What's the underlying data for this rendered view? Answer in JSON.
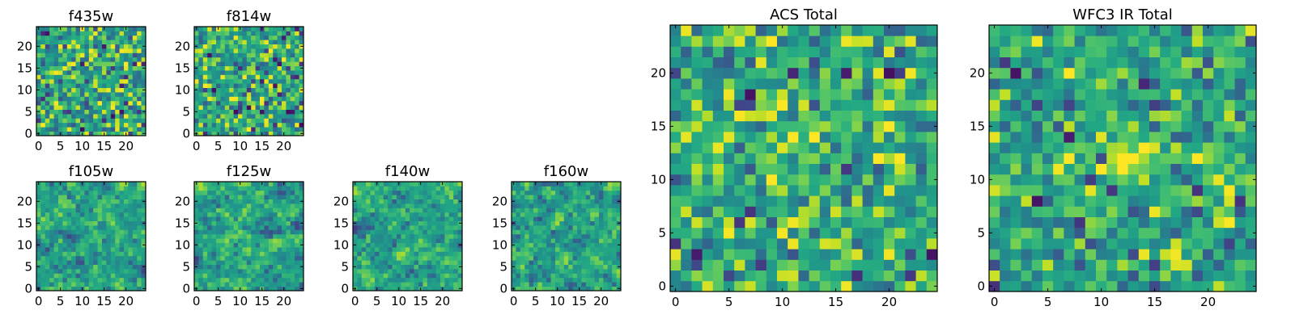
{
  "colors": {
    "colormap": [
      "#440154",
      "#3b528b",
      "#21908d",
      "#5dc963",
      "#fde725"
    ],
    "axes_frame": "#000000",
    "background": "#ffffff"
  },
  "chart_data": [
    {
      "type": "heatmap",
      "id": "f435w",
      "title": "f435w",
      "colormap": "viridis",
      "shape": [
        25,
        25
      ],
      "xlim": [
        -0.5,
        24.5
      ],
      "ylim": [
        -0.5,
        24.5
      ],
      "origin": "lower",
      "xticks": [
        0,
        5,
        10,
        15,
        20
      ],
      "yticks": [
        0,
        5,
        10,
        15,
        20
      ],
      "xtick_labels": [
        "0",
        "5",
        "10",
        "15",
        "20"
      ],
      "ytick_labels": [
        "0",
        "5",
        "10",
        "15",
        "20"
      ],
      "grid": false,
      "pixel_values": "noise-like field, mostly mid-range (green) with scattered dark blue and yellow pixels"
    },
    {
      "type": "heatmap",
      "id": "f814w",
      "title": "f814w",
      "colormap": "viridis",
      "shape": [
        25,
        25
      ],
      "xlim": [
        -0.5,
        24.5
      ],
      "ylim": [
        -0.5,
        24.5
      ],
      "origin": "lower",
      "xticks": [
        0,
        5,
        10,
        15,
        20
      ],
      "yticks": [
        0,
        5,
        10,
        15,
        20
      ],
      "xtick_labels": [
        "0",
        "5",
        "10",
        "15",
        "20"
      ],
      "ytick_labels": [
        "0",
        "5",
        "10",
        "15",
        "20"
      ],
      "grid": false
    },
    {
      "type": "heatmap",
      "id": "f105w",
      "title": "f105w",
      "colormap": "viridis",
      "shape": [
        25,
        25
      ],
      "xlim": [
        -0.5,
        24.5
      ],
      "ylim": [
        -0.5,
        24.5
      ],
      "origin": "lower",
      "xticks": [
        0,
        5,
        10,
        15,
        20
      ],
      "yticks": [
        0,
        5,
        10,
        15,
        20
      ],
      "xtick_labels": [
        "0",
        "5",
        "10",
        "15",
        "20"
      ],
      "ytick_labels": [
        "0",
        "5",
        "10",
        "15",
        "20"
      ],
      "grid": false
    },
    {
      "type": "heatmap",
      "id": "f125w",
      "title": "f125w",
      "colormap": "viridis",
      "shape": [
        25,
        25
      ],
      "xlim": [
        -0.5,
        24.5
      ],
      "ylim": [
        -0.5,
        24.5
      ],
      "origin": "lower",
      "xticks": [
        0,
        5,
        10,
        15,
        20
      ],
      "yticks": [
        0,
        5,
        10,
        15,
        20
      ],
      "xtick_labels": [
        "0",
        "5",
        "10",
        "15",
        "20"
      ],
      "ytick_labels": [
        "0",
        "5",
        "10",
        "15",
        "20"
      ],
      "grid": false
    },
    {
      "type": "heatmap",
      "id": "f140w",
      "title": "f140w",
      "colormap": "viridis",
      "shape": [
        25,
        25
      ],
      "xlim": [
        -0.5,
        24.5
      ],
      "ylim": [
        -0.5,
        24.5
      ],
      "origin": "lower",
      "xticks": [
        0,
        5,
        10,
        15,
        20
      ],
      "yticks": [
        0,
        5,
        10,
        15,
        20
      ],
      "xtick_labels": [
        "0",
        "5",
        "10",
        "15",
        "20"
      ],
      "ytick_labels": [
        "0",
        "5",
        "10",
        "15",
        "20"
      ],
      "grid": false
    },
    {
      "type": "heatmap",
      "id": "f160w",
      "title": "f160w",
      "colormap": "viridis",
      "shape": [
        25,
        25
      ],
      "xlim": [
        -0.5,
        24.5
      ],
      "ylim": [
        -0.5,
        24.5
      ],
      "origin": "lower",
      "xticks": [
        0,
        5,
        10,
        15,
        20
      ],
      "yticks": [
        0,
        5,
        10,
        15,
        20
      ],
      "xtick_labels": [
        "0",
        "5",
        "10",
        "15",
        "20"
      ],
      "ytick_labels": [
        "0",
        "5",
        "10",
        "15",
        "20"
      ],
      "grid": false
    },
    {
      "type": "heatmap",
      "id": "acs_total",
      "title": "ACS Total",
      "colormap": "viridis",
      "shape": [
        25,
        25
      ],
      "xlim": [
        -0.5,
        24.5
      ],
      "ylim": [
        -0.5,
        24.5
      ],
      "origin": "lower",
      "xticks": [
        0,
        5,
        10,
        15,
        20
      ],
      "yticks": [
        0,
        5,
        10,
        15,
        20
      ],
      "xtick_labels": [
        "0",
        "5",
        "10",
        "15",
        "20"
      ],
      "ytick_labels": [
        "0",
        "5",
        "10",
        "15",
        "20"
      ],
      "grid": false
    },
    {
      "type": "heatmap",
      "id": "wfc3_ir_total",
      "title": "WFC3 IR Total",
      "colormap": "viridis",
      "shape": [
        25,
        25
      ],
      "xlim": [
        -0.5,
        24.5
      ],
      "ylim": [
        -0.5,
        24.5
      ],
      "origin": "lower",
      "xticks": [
        0,
        5,
        10,
        15,
        20
      ],
      "yticks": [
        0,
        5,
        10,
        15,
        20
      ],
      "xtick_labels": [
        "0",
        "5",
        "10",
        "15",
        "20"
      ],
      "ytick_labels": [
        "0",
        "5",
        "10",
        "15",
        "20"
      ],
      "grid": false,
      "features": "bright yellow source centered near (12, 12)"
    }
  ]
}
